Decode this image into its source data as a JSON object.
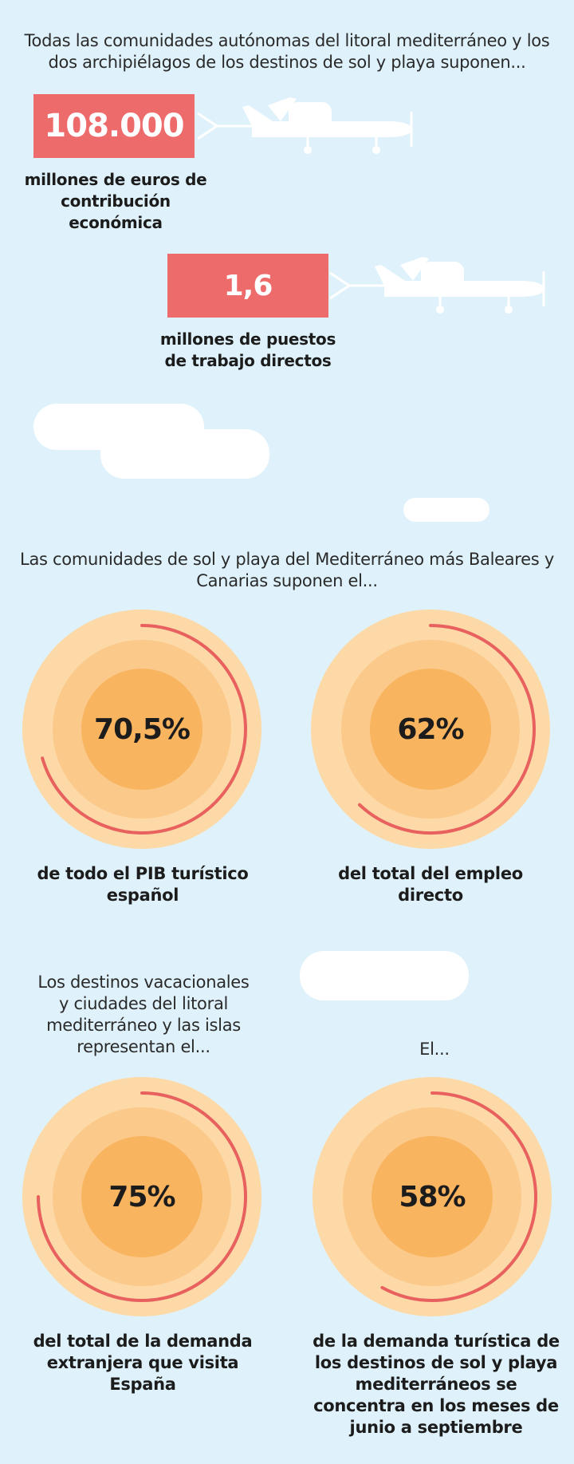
{
  "intro_1": "Todas las comunidades autónomas del litoral mediterráneo y los dos archipiélagos de los destinos de sol y playa suponen...",
  "stats": [
    {
      "value": "108.000",
      "caption": "millones de euros de contribución económica"
    },
    {
      "value": "1,6",
      "caption": "millones de puestos de trabajo directos"
    }
  ],
  "intro_2": "Las comunidades de sol y playa del Mediterráneo más Baleares y Canarias suponen el...",
  "intro_3": "Los destinos vacacionales y ciudades del litoral mediterráneo y las islas representan el...",
  "intro_4": "El...",
  "rings": [
    {
      "value": "70,5%",
      "fraction": 0.705,
      "caption": "de todo el PIB turístico español"
    },
    {
      "value": "62%",
      "fraction": 0.62,
      "caption": "del total del empleo directo"
    },
    {
      "value": "75%",
      "fraction": 0.75,
      "caption": "del total de la demanda extranjera que visita España"
    },
    {
      "value": "58%",
      "fraction": 0.58,
      "caption": "de la demanda turística de los destinos de sol y playa mediterráneos se concentra en los meses de junio a septiembre"
    }
  ],
  "colors": {
    "background": "#dff2fb",
    "stat_box": "#ee6b6b",
    "ring_outer": "#fcd9a6",
    "ring_middle": "#fbc98a",
    "ring_inner": "#f8b45f",
    "arc": "#e8615f"
  }
}
